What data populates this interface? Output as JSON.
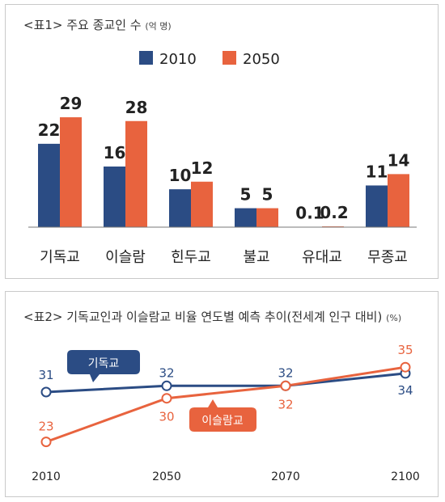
{
  "chart_data": [
    {
      "type": "bar",
      "title": "<표1> 주요 종교인 수",
      "unit": "(억 명)",
      "categories": [
        "기독교",
        "이슬람",
        "힌두교",
        "불교",
        "유대교",
        "무종교"
      ],
      "series": [
        {
          "name": "2010",
          "values": [
            22,
            16,
            10,
            5,
            0.1,
            11
          ],
          "labels": [
            "22",
            "16",
            "10",
            "5",
            "0.1",
            "11"
          ]
        },
        {
          "name": "2050",
          "values": [
            29,
            28,
            12,
            5,
            0.2,
            14
          ],
          "labels": [
            "29",
            "28",
            "12",
            "5",
            "0.2",
            "14"
          ]
        }
      ],
      "legend": "top-center",
      "ylim": [
        0,
        32
      ],
      "grid": false
    },
    {
      "type": "line",
      "title": "<표2> 기독교인과 이슬람교 비율 연도별 예측 추이(전세계 인구 대비)",
      "unit": "(%)",
      "x": [
        "2010",
        "2050",
        "2070",
        "2100"
      ],
      "series": [
        {
          "name": "기독교",
          "values": [
            31,
            32,
            32,
            34
          ]
        },
        {
          "name": "이슬람교",
          "values": [
            23,
            30,
            32,
            35
          ]
        }
      ],
      "point_labels": {
        "기독교": [
          "31",
          "32",
          "32",
          "34"
        ],
        "이슬람교": [
          "23",
          "30",
          "32",
          "35"
        ]
      },
      "ylim": [
        22,
        36
      ],
      "grid": false
    }
  ],
  "colors": {
    "blue": "#2b4c84",
    "orange": "#e8633e"
  }
}
